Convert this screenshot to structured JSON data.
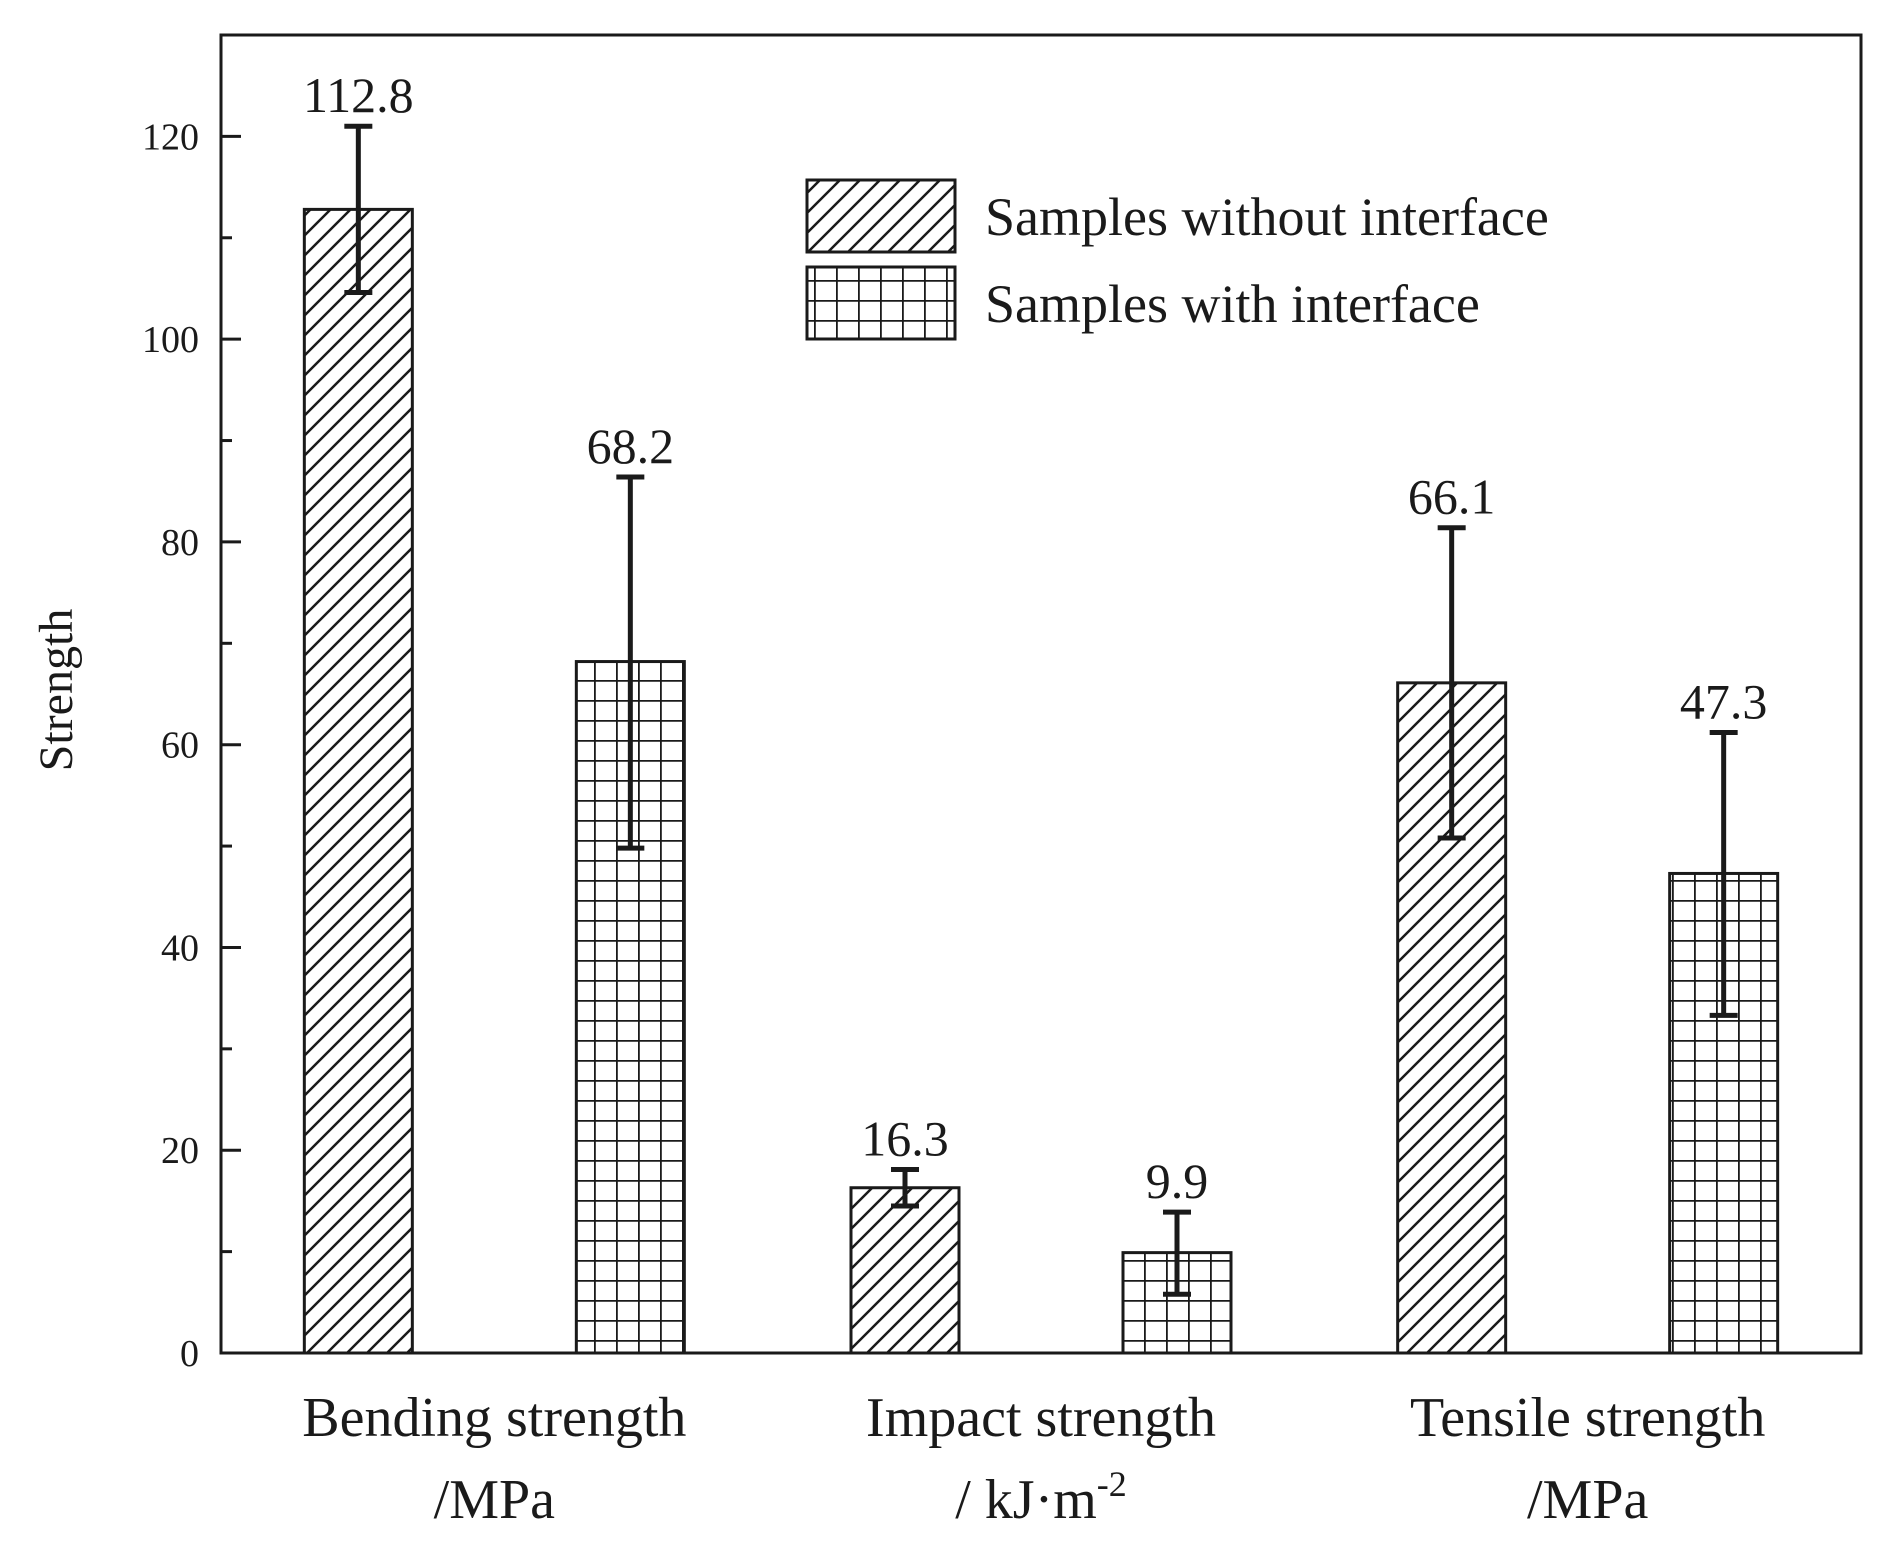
{
  "chart_data": {
    "type": "bar",
    "title": "",
    "xlabel": "",
    "ylabel": "Strength",
    "ylim": [
      0,
      130
    ],
    "yticks": [
      0,
      20,
      40,
      60,
      80,
      100,
      120
    ],
    "categories": [
      {
        "line1": "Bending strength",
        "line2": "/MPa"
      },
      {
        "line1": "Impact strength",
        "line2": "/ kJ·m",
        "superscript": "-2"
      },
      {
        "line1": "Tensile strength",
        "line2": "/MPa"
      }
    ],
    "series": [
      {
        "name": "Samples without interface",
        "pattern": "diagonal-hatch",
        "values": [
          112.8,
          16.3,
          66.1
        ],
        "labels": [
          "112.8",
          "16.3",
          "66.1"
        ],
        "error_low": [
          104.6,
          14.5,
          50.8
        ],
        "error_high": [
          121.0,
          18.1,
          81.4
        ]
      },
      {
        "name": "Samples with interface",
        "pattern": "grid",
        "values": [
          68.2,
          9.9,
          47.3
        ],
        "labels": [
          "68.2",
          "9.9",
          "47.3"
        ],
        "error_low": [
          49.8,
          5.8,
          33.3
        ],
        "error_high": [
          86.4,
          13.9,
          61.2
        ]
      }
    ],
    "legend_position": "top-right",
    "colors": {
      "ink": "#1a1a1a",
      "background": "#ffffff"
    }
  }
}
